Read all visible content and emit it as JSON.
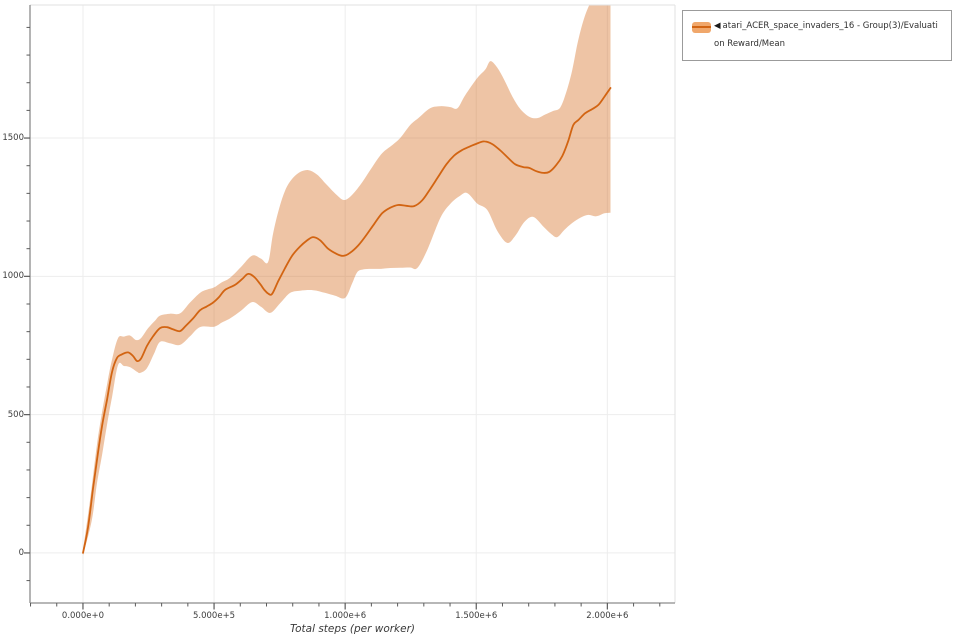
{
  "legend": {
    "marker": "◀",
    "label": "atari_ACER_space_invaders_16 - Group(3)/Evaluation Reward/Mean"
  },
  "colors": {
    "line": "#d26412",
    "band": "rgba(210,100,18,0.38)",
    "legend_swatch": "#f0a76b",
    "grid": "#ededed",
    "axis_dark": "#8c8c8c",
    "frame_light": "#e2e2e2",
    "tick": "#5a5a5a",
    "label_text": "#3c3c3c"
  },
  "chart_data": {
    "type": "line",
    "title": "",
    "xlabel": "Total steps (per worker)",
    "ylabel": "",
    "legend_position": "top-right-outside",
    "grid": "major",
    "xlim": [
      -202000,
      2258000
    ],
    "ylim": [
      -181,
      1981
    ],
    "x_ticks": [
      {
        "v": 0,
        "label": "0.000e+0"
      },
      {
        "v": 500000,
        "label": "5.000e+5"
      },
      {
        "v": 1000000,
        "label": "1.000e+6"
      },
      {
        "v": 1500000,
        "label": "1.500e+6"
      },
      {
        "v": 2000000,
        "label": "2.000e+6"
      }
    ],
    "y_ticks": [
      {
        "v": 0,
        "label": "0"
      },
      {
        "v": 500,
        "label": "500"
      },
      {
        "v": 1000,
        "label": "1000"
      },
      {
        "v": 1500,
        "label": "1500"
      }
    ],
    "x_minor": {
      "start": -200000,
      "end": 2200000,
      "step": 100000
    },
    "y_minor": {
      "start": -100,
      "end": 1900,
      "step": 100
    },
    "series": [
      {
        "name": "atari_ACER_space_invaders_16 - Group(3)/Evaluation Reward/Mean",
        "mean": [
          [
            0,
            0
          ],
          [
            19000,
            90
          ],
          [
            38000,
            230
          ],
          [
            57000,
            360
          ],
          [
            73000,
            460
          ],
          [
            92000,
            555
          ],
          [
            111000,
            655
          ],
          [
            130000,
            705
          ],
          [
            149000,
            718
          ],
          [
            172000,
            725
          ],
          [
            191000,
            712
          ],
          [
            206000,
            694
          ],
          [
            221000,
            702
          ],
          [
            244000,
            748
          ],
          [
            267000,
            783
          ],
          [
            294000,
            813
          ],
          [
            321000,
            816
          ],
          [
            344000,
            808
          ],
          [
            370000,
            802
          ],
          [
            393000,
            822
          ],
          [
            420000,
            848
          ],
          [
            447000,
            878
          ],
          [
            470000,
            890
          ],
          [
            496000,
            905
          ],
          [
            519000,
            925
          ],
          [
            542000,
            951
          ],
          [
            580000,
            969
          ],
          [
            607000,
            990
          ],
          [
            630000,
            1009
          ],
          [
            653000,
            998
          ],
          [
            676000,
            972
          ],
          [
            691000,
            952
          ],
          [
            706000,
            938
          ],
          [
            721000,
            936
          ],
          [
            744000,
            981
          ],
          [
            771000,
            1030
          ],
          [
            798000,
            1075
          ],
          [
            828000,
            1108
          ],
          [
            855000,
            1130
          ],
          [
            878000,
            1142
          ],
          [
            905000,
            1130
          ],
          [
            935000,
            1100
          ],
          [
            966000,
            1082
          ],
          [
            992000,
            1074
          ],
          [
            1019000,
            1085
          ],
          [
            1050000,
            1112
          ],
          [
            1080000,
            1148
          ],
          [
            1111000,
            1190
          ],
          [
            1141000,
            1228
          ],
          [
            1172000,
            1248
          ],
          [
            1202000,
            1258
          ],
          [
            1233000,
            1255
          ],
          [
            1263000,
            1254
          ],
          [
            1294000,
            1275
          ],
          [
            1324000,
            1315
          ],
          [
            1355000,
            1360
          ],
          [
            1386000,
            1405
          ],
          [
            1416000,
            1437
          ],
          [
            1447000,
            1457
          ],
          [
            1477000,
            1470
          ],
          [
            1508000,
            1482
          ],
          [
            1531000,
            1488
          ],
          [
            1561000,
            1478
          ],
          [
            1592000,
            1455
          ],
          [
            1622000,
            1428
          ],
          [
            1649000,
            1405
          ],
          [
            1679000,
            1395
          ],
          [
            1702000,
            1392
          ],
          [
            1729000,
            1380
          ],
          [
            1756000,
            1374
          ],
          [
            1779000,
            1378
          ],
          [
            1805000,
            1402
          ],
          [
            1828000,
            1435
          ],
          [
            1851000,
            1490
          ],
          [
            1870000,
            1547
          ],
          [
            1889000,
            1565
          ],
          [
            1916000,
            1590
          ],
          [
            1943000,
            1605
          ],
          [
            1966000,
            1620
          ],
          [
            1989000,
            1650
          ],
          [
            2012000,
            1681
          ]
        ],
        "upper": [
          [
            0,
            10
          ],
          [
            27000,
            190
          ],
          [
            53000,
            390
          ],
          [
            73000,
            510
          ],
          [
            92000,
            610
          ],
          [
            111000,
            700
          ],
          [
            134000,
            777
          ],
          [
            156000,
            782
          ],
          [
            179000,
            786
          ],
          [
            202000,
            770
          ],
          [
            221000,
            776
          ],
          [
            248000,
            812
          ],
          [
            275000,
            840
          ],
          [
            294000,
            858
          ],
          [
            332000,
            865
          ],
          [
            370000,
            866
          ],
          [
            408000,
            905
          ],
          [
            447000,
            941
          ],
          [
            473000,
            952
          ],
          [
            500000,
            960
          ],
          [
            527000,
            977
          ],
          [
            561000,
            995
          ],
          [
            603000,
            1034
          ],
          [
            645000,
            1075
          ],
          [
            679000,
            1064
          ],
          [
            706000,
            1052
          ],
          [
            725000,
            1155
          ],
          [
            748000,
            1245
          ],
          [
            771000,
            1310
          ],
          [
            794000,
            1348
          ],
          [
            824000,
            1375
          ],
          [
            859000,
            1384
          ],
          [
            893000,
            1368
          ],
          [
            927000,
            1334
          ],
          [
            966000,
            1296
          ],
          [
            996000,
            1276
          ],
          [
            1027000,
            1295
          ],
          [
            1065000,
            1340
          ],
          [
            1103000,
            1395
          ],
          [
            1141000,
            1445
          ],
          [
            1180000,
            1475
          ],
          [
            1210000,
            1500
          ],
          [
            1248000,
            1547
          ],
          [
            1279000,
            1572
          ],
          [
            1324000,
            1608
          ],
          [
            1363000,
            1615
          ],
          [
            1401000,
            1612
          ],
          [
            1428000,
            1608
          ],
          [
            1458000,
            1655
          ],
          [
            1504000,
            1717
          ],
          [
            1535000,
            1748
          ],
          [
            1554000,
            1778
          ],
          [
            1580000,
            1755
          ],
          [
            1607000,
            1710
          ],
          [
            1638000,
            1650
          ],
          [
            1668000,
            1605
          ],
          [
            1702000,
            1577
          ],
          [
            1733000,
            1572
          ],
          [
            1763000,
            1585
          ],
          [
            1794000,
            1598
          ],
          [
            1820000,
            1610
          ],
          [
            1843000,
            1665
          ],
          [
            1866000,
            1745
          ],
          [
            1889000,
            1855
          ],
          [
            1912000,
            1935
          ],
          [
            1935000,
            1990
          ],
          [
            1950000,
            2020
          ],
          [
            1973000,
            2040
          ],
          [
            2012000,
            2040
          ]
        ],
        "lower": [
          [
            0,
            -10
          ],
          [
            34000,
            120
          ],
          [
            53000,
            250
          ],
          [
            73000,
            355
          ],
          [
            92000,
            465
          ],
          [
            111000,
            565
          ],
          [
            134000,
            680
          ],
          [
            156000,
            676
          ],
          [
            179000,
            672
          ],
          [
            206000,
            655
          ],
          [
            218000,
            651
          ],
          [
            244000,
            668
          ],
          [
            271000,
            720
          ],
          [
            294000,
            763
          ],
          [
            332000,
            758
          ],
          [
            370000,
            752
          ],
          [
            408000,
            783
          ],
          [
            447000,
            817
          ],
          [
            500000,
            818
          ],
          [
            530000,
            833
          ],
          [
            561000,
            848
          ],
          [
            603000,
            876
          ],
          [
            645000,
            907
          ],
          [
            679000,
            890
          ],
          [
            714000,
            868
          ],
          [
            752000,
            903
          ],
          [
            790000,
            940
          ],
          [
            828000,
            948
          ],
          [
            878000,
            950
          ],
          [
            924000,
            940
          ],
          [
            962000,
            930
          ],
          [
            1000000,
            922
          ],
          [
            1027000,
            975
          ],
          [
            1046000,
            1015
          ],
          [
            1069000,
            1025
          ],
          [
            1099000,
            1027
          ],
          [
            1134000,
            1027
          ],
          [
            1172000,
            1030
          ],
          [
            1210000,
            1031
          ],
          [
            1248000,
            1032
          ],
          [
            1275000,
            1030
          ],
          [
            1313000,
            1095
          ],
          [
            1363000,
            1211
          ],
          [
            1401000,
            1262
          ],
          [
            1439000,
            1292
          ],
          [
            1466000,
            1301
          ],
          [
            1504000,
            1263
          ],
          [
            1542000,
            1240
          ],
          [
            1580000,
            1165
          ],
          [
            1618000,
            1121
          ],
          [
            1649000,
            1147
          ],
          [
            1683000,
            1196
          ],
          [
            1717000,
            1215
          ],
          [
            1756000,
            1180
          ],
          [
            1786000,
            1153
          ],
          [
            1809000,
            1142
          ],
          [
            1836000,
            1168
          ],
          [
            1866000,
            1193
          ],
          [
            1897000,
            1212
          ],
          [
            1927000,
            1222
          ],
          [
            1958000,
            1217
          ],
          [
            1989000,
            1228
          ],
          [
            2012000,
            1230
          ]
        ]
      }
    ]
  }
}
